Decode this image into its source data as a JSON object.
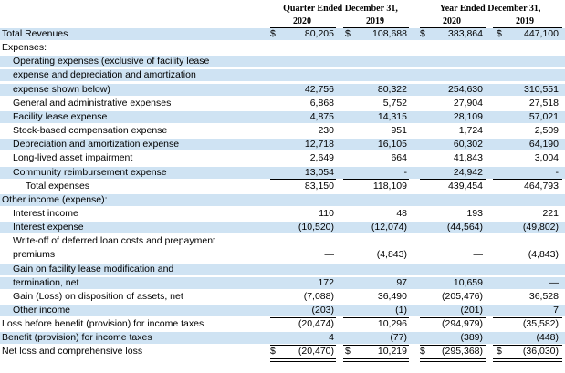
{
  "header": {
    "quarter_label": "Quarter Ended December 31,",
    "year_label": "Year Ended December 31,",
    "years": [
      "2020",
      "2019",
      "2020",
      "2019"
    ]
  },
  "rows": [
    {
      "label": "Total Revenues",
      "indent": 0,
      "v": [
        "80,205",
        "108,688",
        "383,864",
        "447,100"
      ],
      "dollar": true,
      "shade": true
    },
    {
      "label": "Expenses:",
      "indent": 0,
      "v": [
        "",
        "",
        "",
        ""
      ],
      "shade": false
    },
    {
      "label": "Operating expenses (exclusive of facility lease",
      "indent": 1,
      "v": [
        "",
        "",
        "",
        ""
      ],
      "shade": true
    },
    {
      "label": "expense and depreciation and amortization",
      "indent": 1,
      "v": [
        "",
        "",
        "",
        ""
      ],
      "shade": true
    },
    {
      "label": "expense shown below)",
      "indent": 1,
      "v": [
        "42,756",
        "80,322",
        "254,630",
        "310,551"
      ],
      "shade": true
    },
    {
      "label": "General and administrative expenses",
      "indent": 1,
      "v": [
        "6,868",
        "5,752",
        "27,904",
        "27,518"
      ],
      "shade": false
    },
    {
      "label": "Facility lease expense",
      "indent": 1,
      "v": [
        "4,875",
        "14,315",
        "28,109",
        "57,021"
      ],
      "shade": true
    },
    {
      "label": "Stock-based compensation expense",
      "indent": 1,
      "v": [
        "230",
        "951",
        "1,724",
        "2,509"
      ],
      "shade": false
    },
    {
      "label": "Depreciation and amortization expense",
      "indent": 1,
      "v": [
        "12,718",
        "16,105",
        "60,302",
        "64,190"
      ],
      "shade": true
    },
    {
      "label": "Long-lived asset impairment",
      "indent": 1,
      "v": [
        "2,649",
        "664",
        "41,843",
        "3,004"
      ],
      "shade": false
    },
    {
      "label": "Community reimbursement expense",
      "indent": 1,
      "v": [
        "13,054",
        "-",
        "24,942",
        "-"
      ],
      "shade": true,
      "underline": true
    },
    {
      "label": "Total expenses",
      "indent": 2,
      "v": [
        "83,150",
        "118,109",
        "439,454",
        "464,793"
      ],
      "shade": false
    },
    {
      "label": "Other income (expense):",
      "indent": 0,
      "v": [
        "",
        "",
        "",
        ""
      ],
      "shade": true
    },
    {
      "label": "Interest income",
      "indent": 1,
      "v": [
        "110",
        "48",
        "193",
        "221"
      ],
      "shade": false
    },
    {
      "label": "Interest expense",
      "indent": 1,
      "v": [
        "(10,520)",
        "(12,074)",
        "(44,564)",
        "(49,802)"
      ],
      "shade": true
    },
    {
      "label": "Write-off of deferred loan costs and prepayment",
      "indent": 1,
      "v": [
        "",
        "",
        "",
        ""
      ],
      "shade": false
    },
    {
      "label": "premiums",
      "indent": 1,
      "v": [
        "—",
        "(4,843)",
        "—",
        "(4,843)"
      ],
      "shade": false
    },
    {
      "label": "Gain on facility lease modification and",
      "indent": 1,
      "v": [
        "",
        "",
        "",
        ""
      ],
      "shade": true
    },
    {
      "label": "termination, net",
      "indent": 1,
      "v": [
        "172",
        "97",
        "10,659",
        "—"
      ],
      "shade": true
    },
    {
      "label": "Gain (Loss) on disposition of assets, net",
      "indent": 1,
      "v": [
        "(7,088)",
        "36,490",
        "(205,476)",
        "36,528"
      ],
      "shade": false
    },
    {
      "label": "Other income",
      "indent": 1,
      "v": [
        "(203)",
        "(1)",
        "(201)",
        "7"
      ],
      "shade": true,
      "underline": true
    },
    {
      "label": "Loss before benefit (provision) for income taxes",
      "indent": 0,
      "v": [
        "(20,474)",
        "10,296",
        "(294,979)",
        "(35,582)"
      ],
      "shade": false
    },
    {
      "label": "Benefit (provision) for income taxes",
      "indent": 0,
      "v": [
        "4",
        "(77)",
        "(389)",
        "(448)"
      ],
      "shade": true,
      "underline": true
    },
    {
      "label": "Net loss and comprehensive loss",
      "indent": 0,
      "v": [
        "(20,470)",
        "10,219",
        "(295,368)",
        "(36,030)"
      ],
      "dollar": true,
      "shade": false,
      "double": true
    }
  ],
  "currency_symbol": "$"
}
